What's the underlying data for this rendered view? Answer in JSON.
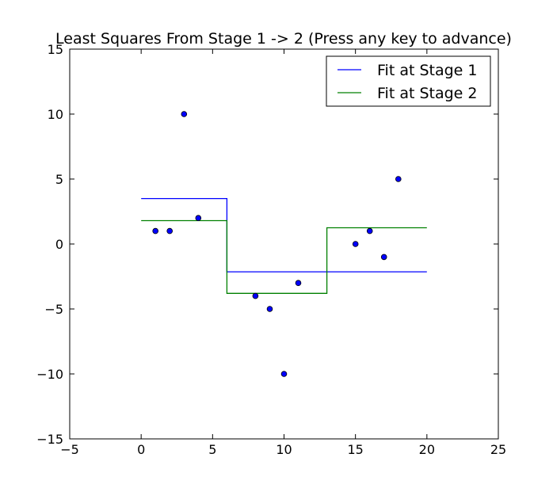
{
  "chart_data": {
    "type": "scatter",
    "title": "Least Squares From Stage 1 -> 2 (Press any key to advance)",
    "xlabel": "",
    "ylabel": "",
    "xlim": [
      -5,
      25
    ],
    "ylim": [
      -15,
      15
    ],
    "xticks": [
      -5,
      0,
      5,
      10,
      15,
      20,
      25
    ],
    "yticks": [
      -15,
      -10,
      -5,
      0,
      5,
      10,
      15
    ],
    "xtick_labels": [
      "−5",
      "0",
      "5",
      "10",
      "15",
      "20",
      "25"
    ],
    "ytick_labels": [
      "−15",
      "−10",
      "−5",
      "0",
      "5",
      "10",
      "15"
    ],
    "grid": false,
    "legend_position": "top-right",
    "points": {
      "x": [
        1,
        2,
        3,
        4,
        8,
        9,
        10,
        11,
        15,
        16,
        17,
        18
      ],
      "y": [
        1,
        1,
        10,
        2,
        -4,
        -5,
        -10,
        -3,
        0,
        1,
        -1,
        5
      ],
      "color": "#0000ff"
    },
    "series": [
      {
        "name": "Fit at Stage 1",
        "color": "#0000ff",
        "x": [
          0,
          6,
          6,
          20
        ],
        "y": [
          3.5,
          3.5,
          -2.14,
          -2.14
        ]
      },
      {
        "name": "Fit at Stage 2",
        "color": "#008000",
        "x": [
          0,
          6,
          6,
          13,
          13,
          20
        ],
        "y": [
          1.8,
          1.8,
          -3.8,
          -3.8,
          1.25,
          1.25
        ]
      }
    ]
  }
}
